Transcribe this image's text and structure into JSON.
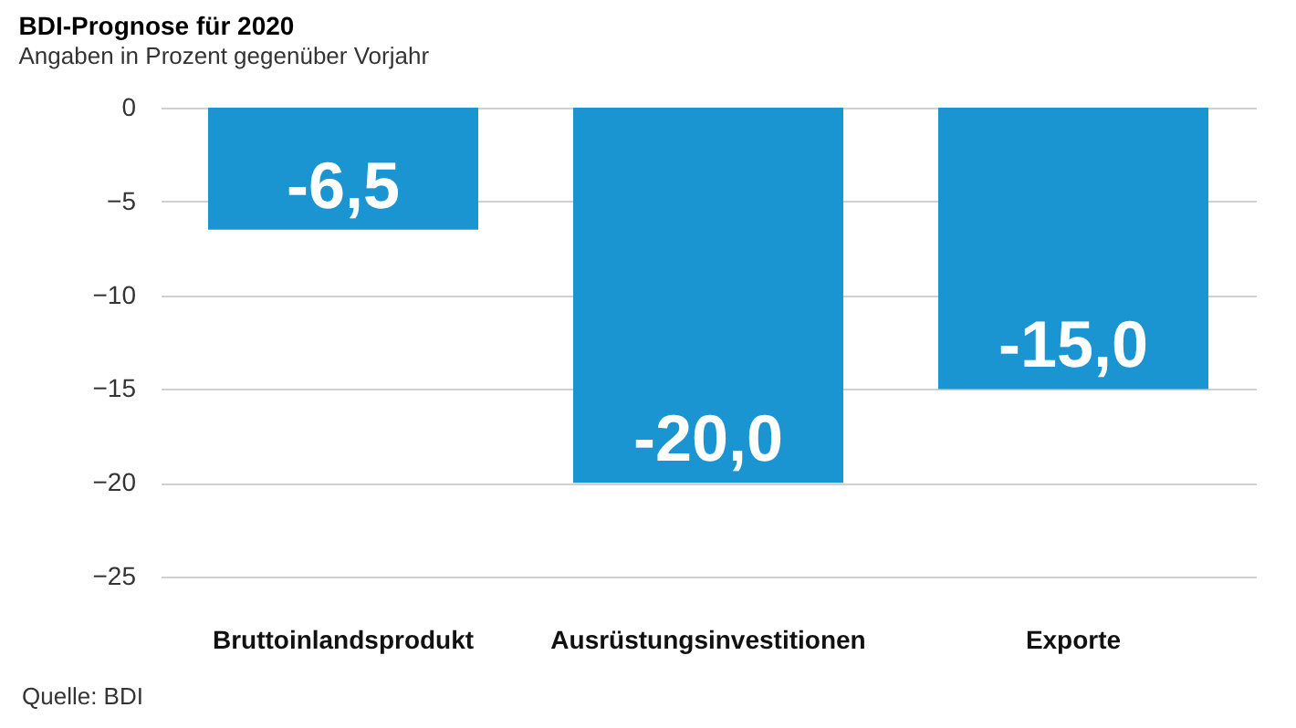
{
  "chart_data": {
    "type": "bar",
    "title": "BDI-Prognose für 2020",
    "subtitle": "Angaben in Prozent gegenüber Vorjahr",
    "categories": [
      "Bruttoinlandsprodukt",
      "Ausrüstungsinvestitionen",
      "Exporte"
    ],
    "values": [
      -6.5,
      -20.0,
      -15.0
    ],
    "value_labels": [
      "-6,5",
      "-20,0",
      "-15,0"
    ],
    "color": "#1a95d2",
    "ylim": [
      -25,
      0
    ],
    "yticks": [
      0,
      -5,
      -10,
      -15,
      -20,
      -25
    ],
    "grid": "y",
    "annotations": [
      "Quelle: BDI"
    ]
  }
}
